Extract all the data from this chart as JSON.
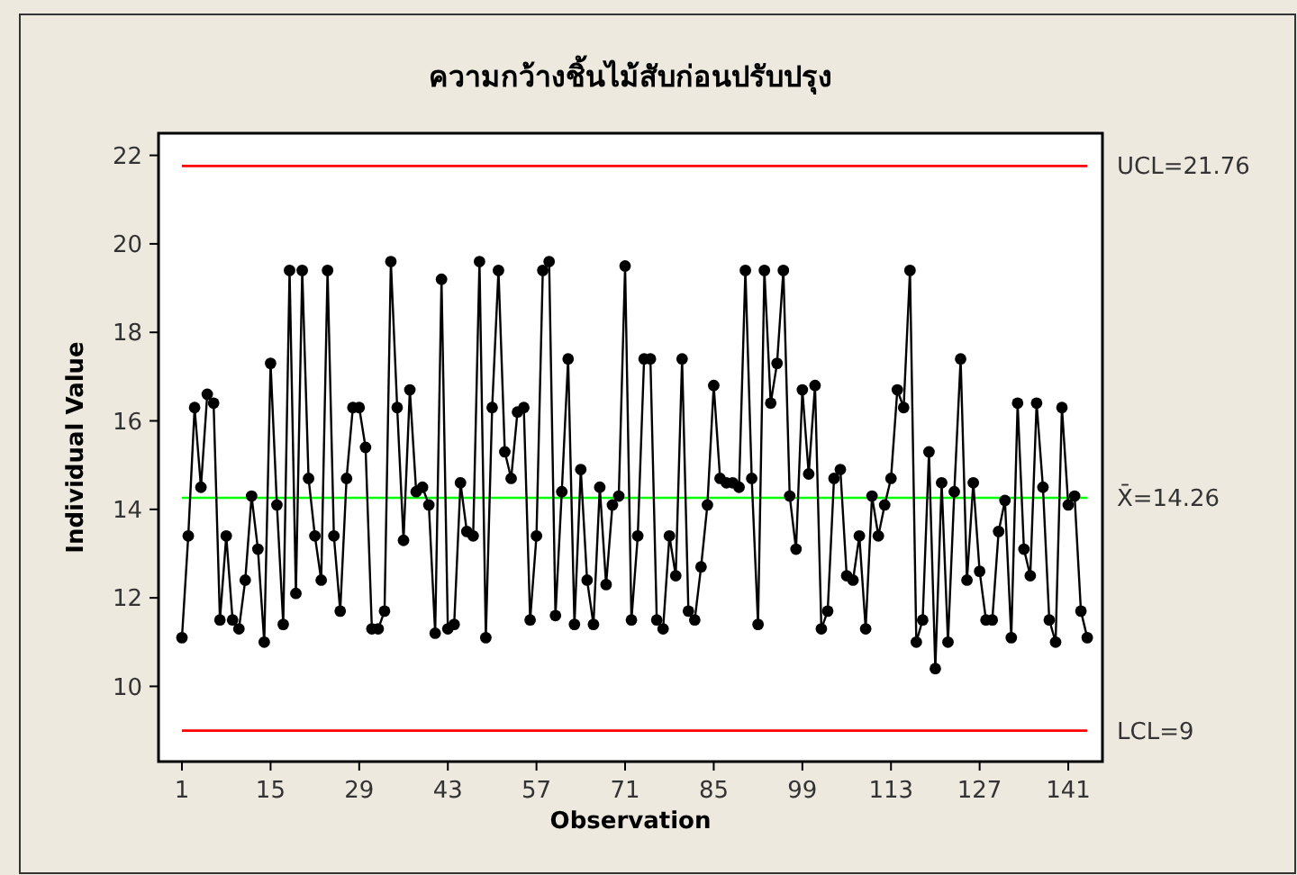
{
  "chart_data": {
    "type": "line",
    "title": "ความกว้างชิ้นไม้สับก่อนปรับปรุง",
    "xlabel": "Observation",
    "ylabel": "Individual Value",
    "x": [
      1,
      2,
      3,
      4,
      5,
      6,
      7,
      8,
      9,
      10,
      11,
      12,
      13,
      14,
      15,
      16,
      17,
      18,
      19,
      20,
      21,
      22,
      23,
      24,
      25,
      26,
      27,
      28,
      29,
      30,
      31,
      32,
      33,
      34,
      35,
      36,
      37,
      38,
      39,
      40,
      41,
      42,
      43,
      44,
      45,
      46,
      47,
      48,
      49,
      50,
      51,
      52,
      53,
      54,
      55,
      56,
      57,
      58,
      59,
      60,
      61,
      62,
      63,
      64,
      65,
      66,
      67,
      68,
      69,
      70,
      71,
      72,
      73,
      74,
      75,
      76,
      77,
      78,
      79,
      80,
      81,
      82,
      83,
      84,
      85,
      86,
      87,
      88,
      89,
      90,
      91,
      92,
      93,
      94,
      95,
      96,
      97,
      98,
      99,
      100,
      101,
      102,
      103,
      104,
      105,
      106,
      107,
      108,
      109,
      110,
      111,
      112,
      113,
      114,
      115,
      116,
      117,
      118,
      119,
      120,
      121,
      122,
      123,
      124,
      125,
      126,
      127,
      128,
      129,
      130,
      131,
      132,
      133,
      134,
      135,
      136,
      137,
      138,
      139,
      140,
      141,
      142,
      143,
      144
    ],
    "series": [
      {
        "color": "#000000",
        "values": [
          11.1,
          13.4,
          16.3,
          14.5,
          16.6,
          16.4,
          11.5,
          13.4,
          11.5,
          11.3,
          12.4,
          14.3,
          13.1,
          11.0,
          17.3,
          14.1,
          11.4,
          19.4,
          12.1,
          19.4,
          14.7,
          13.4,
          12.4,
          19.4,
          13.4,
          11.7,
          14.7,
          16.3,
          16.3,
          15.4,
          11.3,
          11.3,
          11.7,
          19.6,
          16.3,
          13.3,
          16.7,
          14.4,
          14.5,
          14.1,
          11.2,
          19.2,
          11.3,
          11.4,
          14.6,
          13.5,
          13.4,
          19.6,
          11.1,
          16.3,
          19.4,
          15.3,
          14.7,
          16.2,
          16.3,
          11.5,
          13.4,
          19.4,
          19.6,
          11.6,
          14.4,
          17.4,
          11.4,
          14.9,
          12.4,
          11.4,
          14.5,
          12.3,
          14.1,
          14.3,
          19.5,
          11.5,
          13.4,
          17.4,
          17.4,
          11.5,
          11.3,
          13.4,
          12.5,
          17.4,
          11.7,
          11.5,
          12.7,
          14.1,
          16.8,
          14.7,
          14.6,
          14.6,
          14.5,
          19.4,
          14.7,
          11.4,
          19.4,
          16.4,
          17.3,
          19.4,
          14.3,
          13.1,
          16.7,
          14.8,
          16.8,
          11.3,
          11.7,
          14.7,
          14.9,
          12.5,
          12.4,
          13.4,
          11.3,
          14.3,
          13.4,
          14.1,
          14.7,
          16.7,
          16.3,
          19.4,
          11.0,
          11.5,
          15.3,
          10.4,
          14.6,
          11.0,
          14.4,
          17.4,
          12.4,
          14.6,
          12.6,
          11.5,
          11.5,
          13.5,
          14.2,
          11.1,
          16.4,
          13.1,
          12.5,
          16.4,
          14.5,
          11.5,
          11.0,
          16.3,
          14.1,
          14.3,
          11.7,
          11.1
        ]
      }
    ],
    "xlim": [
      -2.7,
      146.4
    ],
    "ylim": [
      8.3,
      22.5
    ],
    "xticks": [
      1,
      15,
      29,
      43,
      57,
      71,
      85,
      99,
      113,
      127,
      141
    ],
    "yticks": [
      10,
      12,
      14,
      16,
      18,
      20,
      22
    ],
    "ref_lines": [
      {
        "axis": "y",
        "value": 21.76,
        "label": "UCL=21.76",
        "color": "#ff0000"
      },
      {
        "axis": "y",
        "value": 14.26,
        "label": "X̄=14.26",
        "color": "#00ff00"
      },
      {
        "axis": "y",
        "value": 9,
        "label": "LCL=9",
        "color": "#ff0000"
      }
    ],
    "grid": false,
    "marker": "circle",
    "line_style": "solid"
  }
}
